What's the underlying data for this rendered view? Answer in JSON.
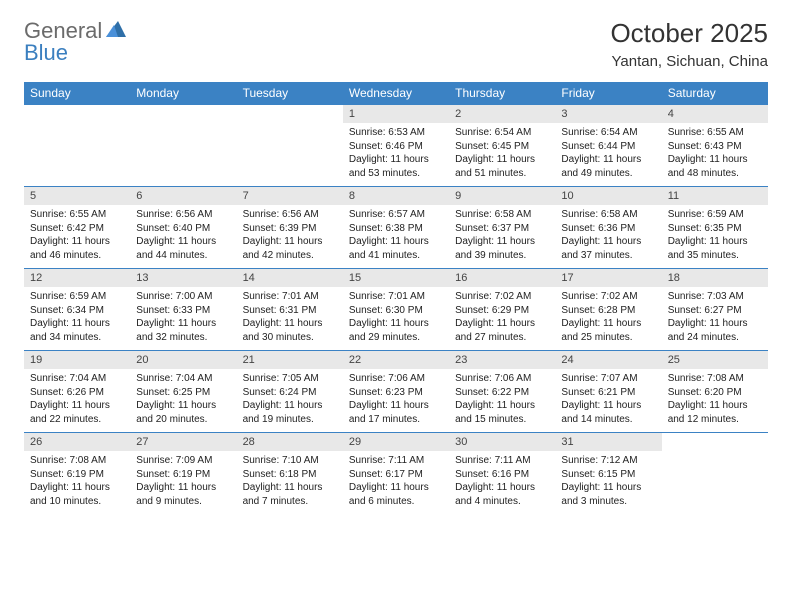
{
  "logo": {
    "text1": "General",
    "text2": "Blue"
  },
  "title": "October 2025",
  "location": "Yantan, Sichuan, China",
  "colors": {
    "header_bg": "#3b82c4",
    "header_text": "#ffffff",
    "daynum_bg": "#e8e8e8",
    "border": "#3b82c4",
    "logo_gray": "#6b6b6b",
    "logo_blue": "#3b7fbf",
    "text": "#222222"
  },
  "day_names": [
    "Sunday",
    "Monday",
    "Tuesday",
    "Wednesday",
    "Thursday",
    "Friday",
    "Saturday"
  ],
  "weeks": [
    [
      {
        "n": "",
        "sr": "",
        "ss": "",
        "dl": ""
      },
      {
        "n": "",
        "sr": "",
        "ss": "",
        "dl": ""
      },
      {
        "n": "",
        "sr": "",
        "ss": "",
        "dl": ""
      },
      {
        "n": "1",
        "sr": "6:53 AM",
        "ss": "6:46 PM",
        "dl": "11 hours and 53 minutes."
      },
      {
        "n": "2",
        "sr": "6:54 AM",
        "ss": "6:45 PM",
        "dl": "11 hours and 51 minutes."
      },
      {
        "n": "3",
        "sr": "6:54 AM",
        "ss": "6:44 PM",
        "dl": "11 hours and 49 minutes."
      },
      {
        "n": "4",
        "sr": "6:55 AM",
        "ss": "6:43 PM",
        "dl": "11 hours and 48 minutes."
      }
    ],
    [
      {
        "n": "5",
        "sr": "6:55 AM",
        "ss": "6:42 PM",
        "dl": "11 hours and 46 minutes."
      },
      {
        "n": "6",
        "sr": "6:56 AM",
        "ss": "6:40 PM",
        "dl": "11 hours and 44 minutes."
      },
      {
        "n": "7",
        "sr": "6:56 AM",
        "ss": "6:39 PM",
        "dl": "11 hours and 42 minutes."
      },
      {
        "n": "8",
        "sr": "6:57 AM",
        "ss": "6:38 PM",
        "dl": "11 hours and 41 minutes."
      },
      {
        "n": "9",
        "sr": "6:58 AM",
        "ss": "6:37 PM",
        "dl": "11 hours and 39 minutes."
      },
      {
        "n": "10",
        "sr": "6:58 AM",
        "ss": "6:36 PM",
        "dl": "11 hours and 37 minutes."
      },
      {
        "n": "11",
        "sr": "6:59 AM",
        "ss": "6:35 PM",
        "dl": "11 hours and 35 minutes."
      }
    ],
    [
      {
        "n": "12",
        "sr": "6:59 AM",
        "ss": "6:34 PM",
        "dl": "11 hours and 34 minutes."
      },
      {
        "n": "13",
        "sr": "7:00 AM",
        "ss": "6:33 PM",
        "dl": "11 hours and 32 minutes."
      },
      {
        "n": "14",
        "sr": "7:01 AM",
        "ss": "6:31 PM",
        "dl": "11 hours and 30 minutes."
      },
      {
        "n": "15",
        "sr": "7:01 AM",
        "ss": "6:30 PM",
        "dl": "11 hours and 29 minutes."
      },
      {
        "n": "16",
        "sr": "7:02 AM",
        "ss": "6:29 PM",
        "dl": "11 hours and 27 minutes."
      },
      {
        "n": "17",
        "sr": "7:02 AM",
        "ss": "6:28 PM",
        "dl": "11 hours and 25 minutes."
      },
      {
        "n": "18",
        "sr": "7:03 AM",
        "ss": "6:27 PM",
        "dl": "11 hours and 24 minutes."
      }
    ],
    [
      {
        "n": "19",
        "sr": "7:04 AM",
        "ss": "6:26 PM",
        "dl": "11 hours and 22 minutes."
      },
      {
        "n": "20",
        "sr": "7:04 AM",
        "ss": "6:25 PM",
        "dl": "11 hours and 20 minutes."
      },
      {
        "n": "21",
        "sr": "7:05 AM",
        "ss": "6:24 PM",
        "dl": "11 hours and 19 minutes."
      },
      {
        "n": "22",
        "sr": "7:06 AM",
        "ss": "6:23 PM",
        "dl": "11 hours and 17 minutes."
      },
      {
        "n": "23",
        "sr": "7:06 AM",
        "ss": "6:22 PM",
        "dl": "11 hours and 15 minutes."
      },
      {
        "n": "24",
        "sr": "7:07 AM",
        "ss": "6:21 PM",
        "dl": "11 hours and 14 minutes."
      },
      {
        "n": "25",
        "sr": "7:08 AM",
        "ss": "6:20 PM",
        "dl": "11 hours and 12 minutes."
      }
    ],
    [
      {
        "n": "26",
        "sr": "7:08 AM",
        "ss": "6:19 PM",
        "dl": "11 hours and 10 minutes."
      },
      {
        "n": "27",
        "sr": "7:09 AM",
        "ss": "6:19 PM",
        "dl": "11 hours and 9 minutes."
      },
      {
        "n": "28",
        "sr": "7:10 AM",
        "ss": "6:18 PM",
        "dl": "11 hours and 7 minutes."
      },
      {
        "n": "29",
        "sr": "7:11 AM",
        "ss": "6:17 PM",
        "dl": "11 hours and 6 minutes."
      },
      {
        "n": "30",
        "sr": "7:11 AM",
        "ss": "6:16 PM",
        "dl": "11 hours and 4 minutes."
      },
      {
        "n": "31",
        "sr": "7:12 AM",
        "ss": "6:15 PM",
        "dl": "11 hours and 3 minutes."
      },
      {
        "n": "",
        "sr": "",
        "ss": "",
        "dl": ""
      }
    ]
  ],
  "labels": {
    "sunrise": "Sunrise:",
    "sunset": "Sunset:",
    "daylight": "Daylight:"
  }
}
